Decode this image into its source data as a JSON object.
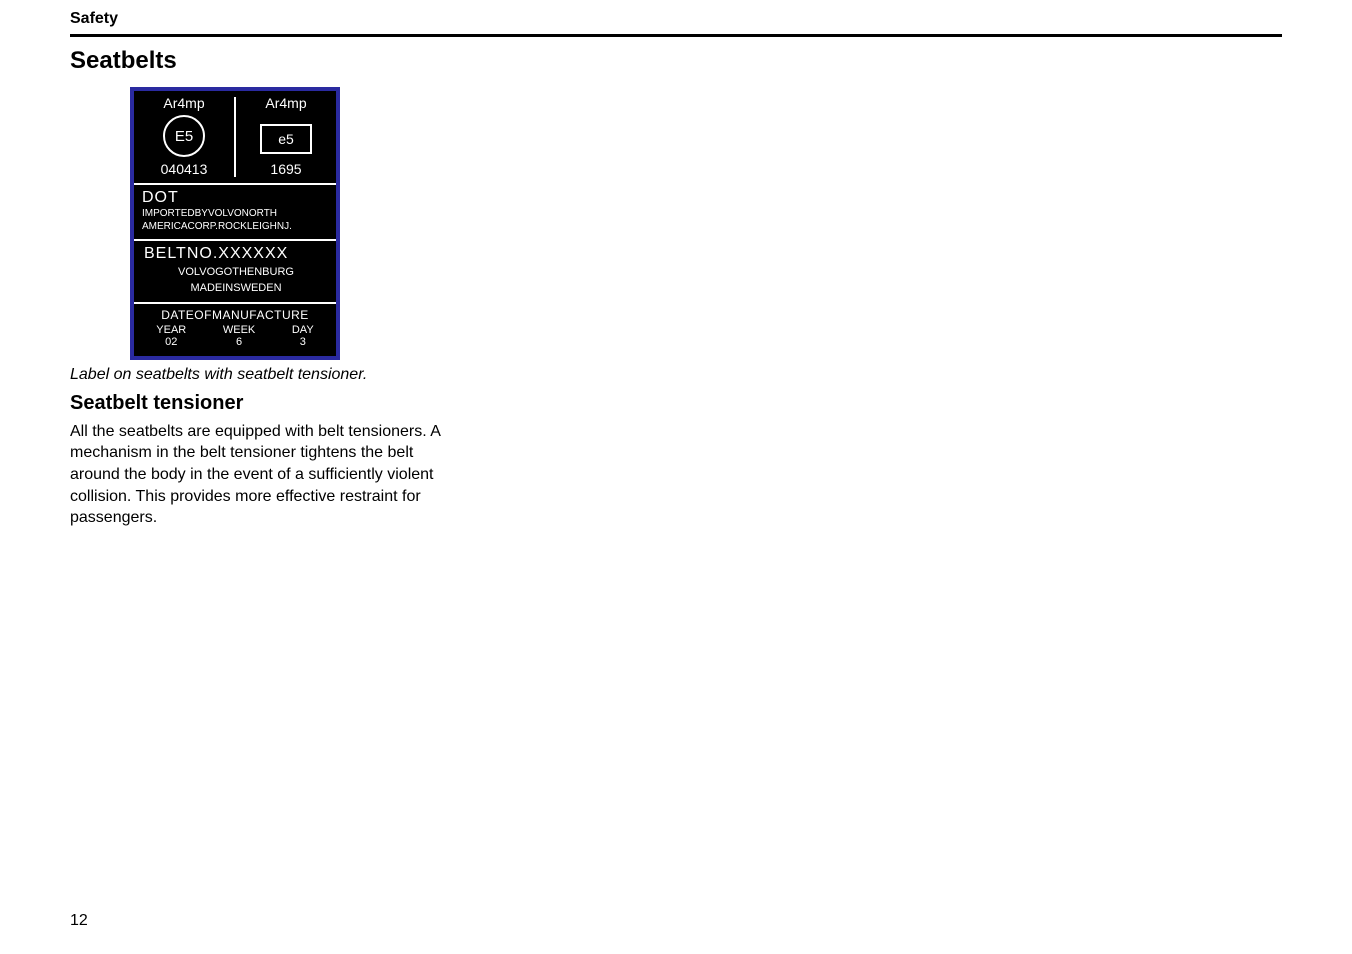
{
  "header": {
    "section": "Safety"
  },
  "title": "Seatbelts",
  "label": {
    "top": {
      "left": {
        "line1": "Ar4mp",
        "circle": "E5",
        "line2": "040413"
      },
      "right": {
        "line1": "Ar4mp",
        "rect": "e5",
        "line2": "1695"
      }
    },
    "dot": {
      "title": "DOT",
      "line1": "IMPORTEDBYVOLVONORTH",
      "line2": "AMERICACORP.ROCKLEIGHNJ."
    },
    "beltno": {
      "title": "BELTNO.XXXXXX",
      "line1": "VOLVOGOTHENBURG",
      "line2": "MADEINSWEDEN"
    },
    "mfg": {
      "title": "DATEOFMANUFACTURE",
      "cols": [
        {
          "label": "YEAR",
          "value": "02"
        },
        {
          "label": "WEEK",
          "value": "6"
        },
        {
          "label": "DAY",
          "value": "3"
        }
      ]
    }
  },
  "caption": "Label on seatbelts with seatbelt tensioner.",
  "subheading": "Seatbelt tensioner",
  "body": "All the seatbelts are equipped with belt tensioners. A mechanism in the belt tensioner tightens the belt around the body in the event of a sufficiently violent collision. This provides more effective restraint for passengers.",
  "page_number": "12",
  "colors": {
    "page_bg": "#ffffff",
    "text": "#000000",
    "label_bg": "#000000",
    "label_fg": "#ffffff",
    "label_border": "#2a2aa0"
  }
}
